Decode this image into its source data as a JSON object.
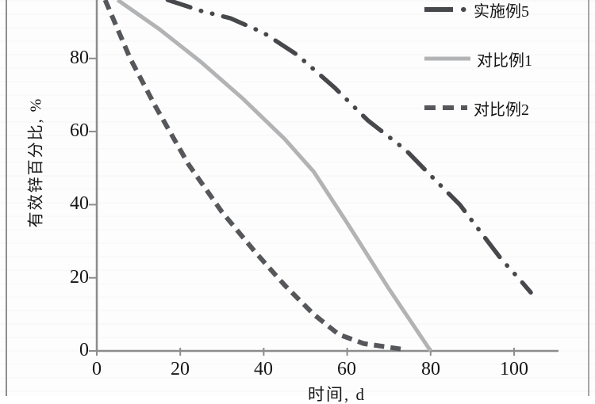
{
  "figure": {
    "background": "#fdfdfd",
    "frame_color_left": "#8f8f8f",
    "frame_color_right": "#a6a6a6"
  },
  "chart_data": {
    "type": "line",
    "title": "",
    "xlabel": "时间, d",
    "ylabel": "有效锌百分比, %",
    "x_ticks": [
      0,
      20,
      40,
      60,
      80,
      100
    ],
    "y_ticks": [
      0,
      20,
      40,
      60,
      80
    ],
    "xlim": [
      0,
      110
    ],
    "ylim": [
      0,
      100
    ],
    "visible_top_value": 96,
    "grid": false,
    "legend_position": "upper right",
    "axis_color": "#8c8c8c",
    "text_color": "#161616",
    "series": [
      {
        "name": "实施例5",
        "color": "#47484c",
        "dash": "dash-dot-dot",
        "width": 5.5,
        "linecap": "round",
        "points": [
          [
            17,
            96
          ],
          [
            25,
            93
          ],
          [
            32,
            91
          ],
          [
            40,
            87
          ],
          [
            48,
            81
          ],
          [
            57,
            72
          ],
          [
            65,
            63
          ],
          [
            74,
            55
          ],
          [
            80,
            48
          ],
          [
            87,
            40
          ],
          [
            93,
            31
          ],
          [
            97,
            25
          ],
          [
            101,
            20
          ],
          [
            104,
            16
          ]
        ]
      },
      {
        "name": "对比例1",
        "color": "#b2b3b5",
        "dash": "solid",
        "width": 5,
        "linecap": "butt",
        "points": [
          [
            5,
            96
          ],
          [
            15,
            88
          ],
          [
            25,
            79
          ],
          [
            35,
            69
          ],
          [
            45,
            58
          ],
          [
            52,
            49
          ],
          [
            60,
            35
          ],
          [
            70,
            17
          ],
          [
            80,
            0
          ]
        ]
      },
      {
        "name": "对比例2",
        "color": "#55575a",
        "dash": "dashed",
        "width": 6,
        "linecap": "butt",
        "points": [
          [
            2,
            96
          ],
          [
            8,
            80
          ],
          [
            14,
            67
          ],
          [
            22,
            51
          ],
          [
            30,
            38
          ],
          [
            38,
            27
          ],
          [
            45,
            18
          ],
          [
            52,
            10
          ],
          [
            58,
            4.5
          ],
          [
            64,
            2
          ],
          [
            70,
            1
          ],
          [
            73,
            0.5
          ]
        ]
      }
    ]
  }
}
